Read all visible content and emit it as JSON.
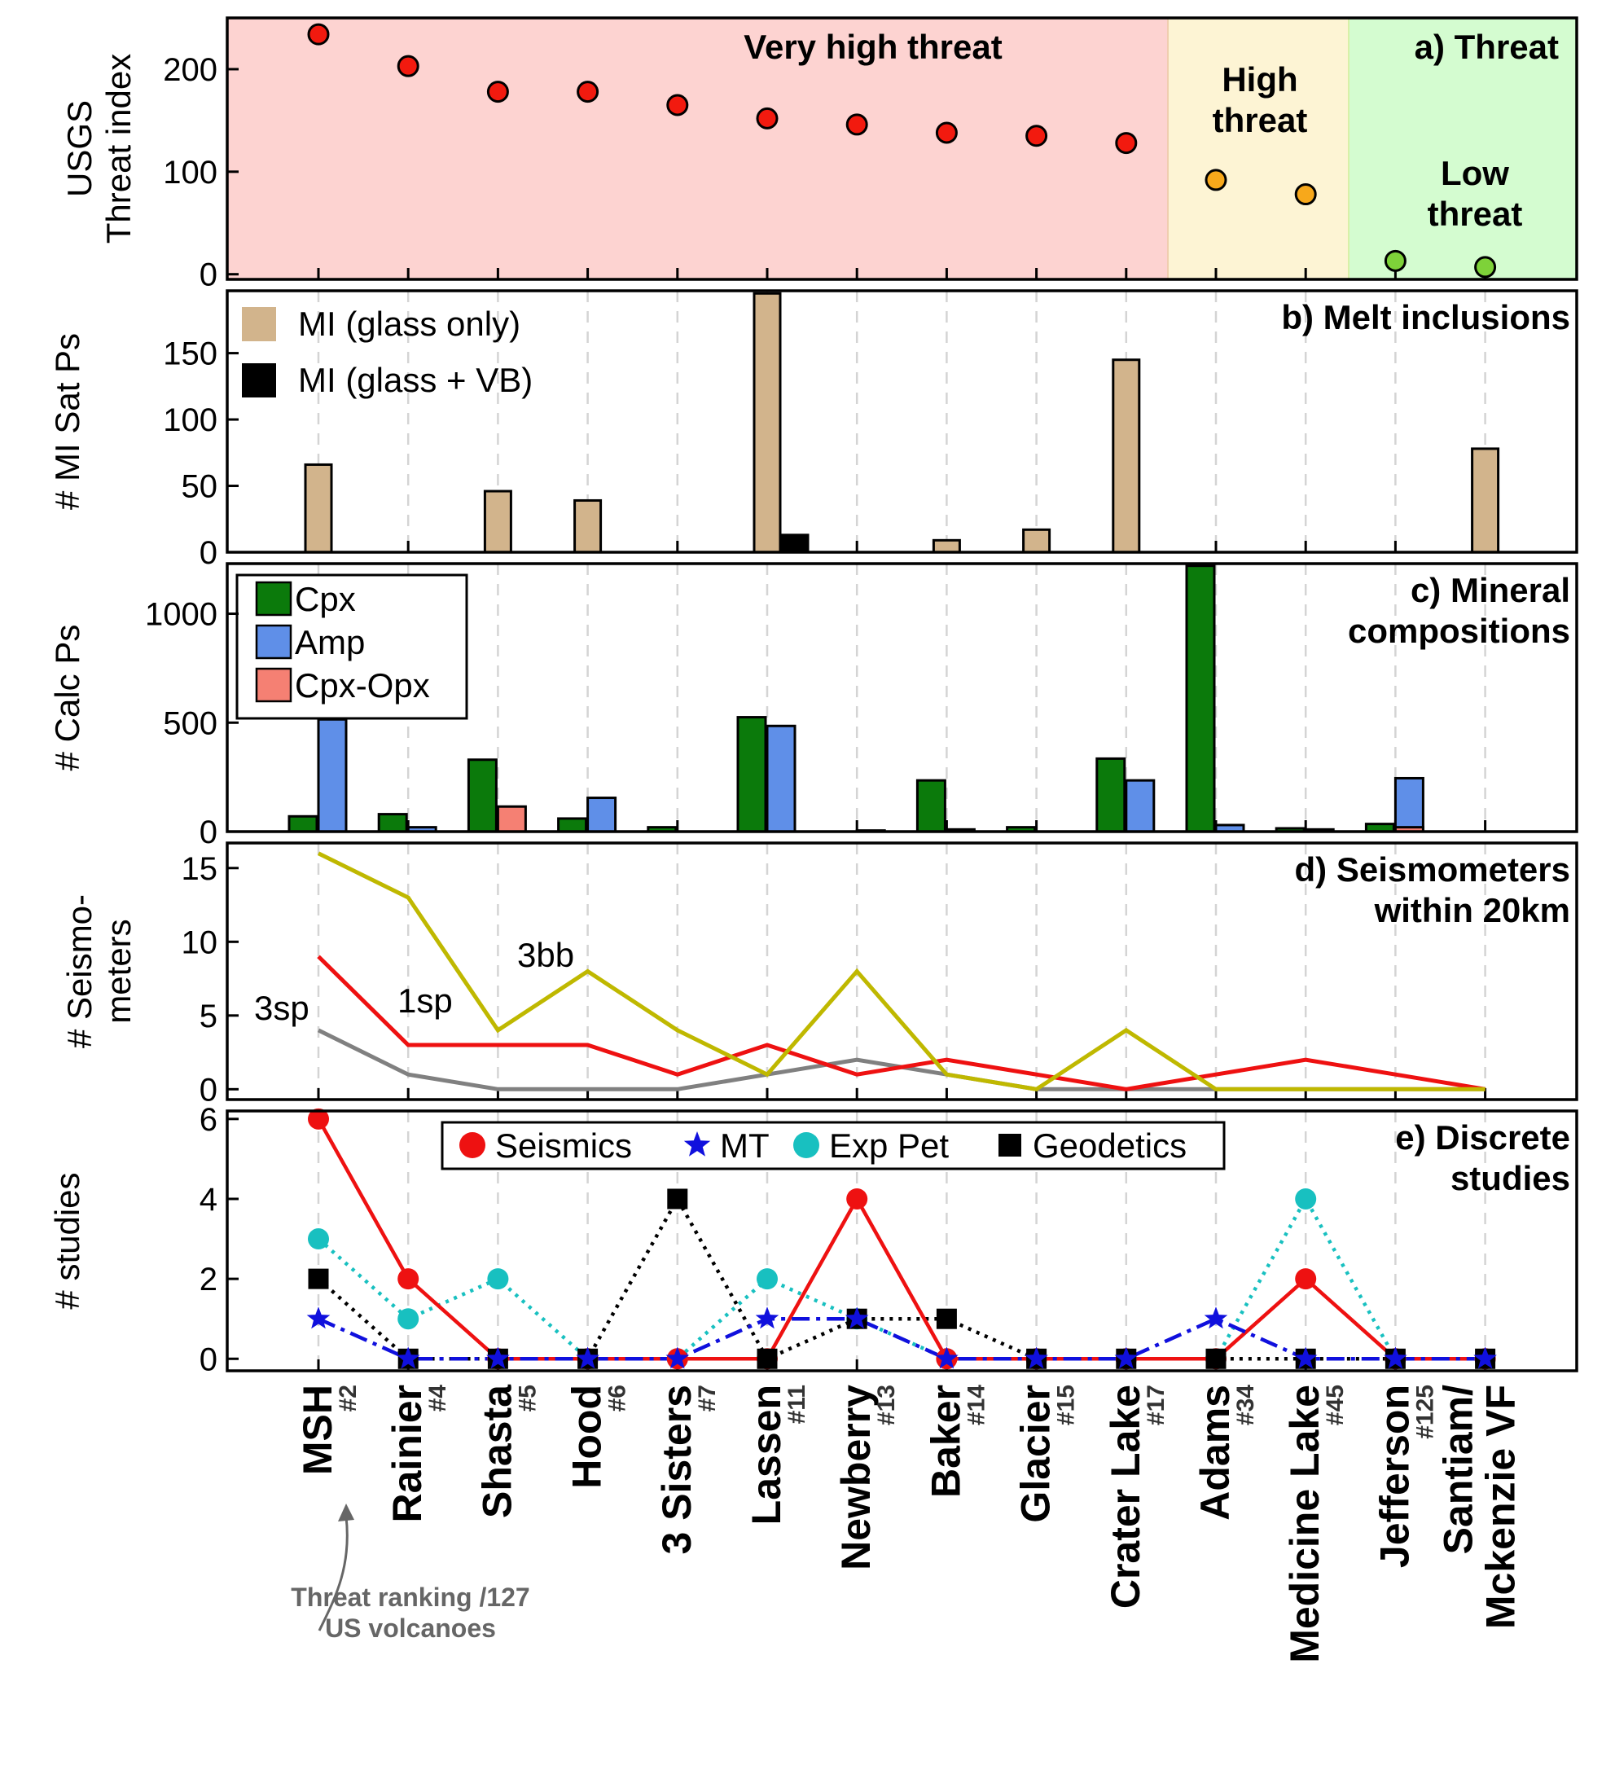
{
  "volcanoes": {
    "names": [
      "MSH",
      "Rainier",
      "Shasta",
      "Hood",
      "3 Sisters",
      "Lassen",
      "Newberry",
      "Baker",
      "Glacier",
      "Crater Lake",
      "Adams",
      "Medicine Lake",
      "Jefferson",
      "Santiam/\nMckenzie VF"
    ],
    "name_lines": [
      [
        "MSH"
      ],
      [
        "Rainier"
      ],
      [
        "Shasta"
      ],
      [
        "Hood"
      ],
      [
        "3 Sisters"
      ],
      [
        "Lassen"
      ],
      [
        "Newberry"
      ],
      [
        "Baker"
      ],
      [
        "Glacier"
      ],
      [
        "Crater Lake"
      ],
      [
        "Adams"
      ],
      [
        "Medicine Lake"
      ],
      [
        "Jefferson"
      ],
      [
        "Santiam/",
        "Mckenzie VF"
      ]
    ],
    "ranks": [
      "#2",
      "#4",
      "#5",
      "#6",
      "#7",
      "#11",
      "#13",
      "#14",
      "#15",
      "#17",
      "#34",
      "#45",
      "#125",
      ""
    ]
  },
  "annotation": {
    "line1": "Threat ranking /127",
    "line2": "US volcanoes",
    "color": "#666666"
  },
  "colors": {
    "very_high_bg": "#fdd3d1",
    "high_bg": "#fdf4d4",
    "low_bg": "#d4fcd0",
    "very_high_pt": "#f21a0f",
    "high_pt": "#f7a81b",
    "low_pt": "#7ed239",
    "mi_glass": "#d2b48c",
    "mi_vb": "#000000",
    "cpx": "#0b7a0b",
    "amp": "#5f8fe8",
    "cpxopx": "#f58073",
    "seis_3bb": "#bfb800",
    "seis_1sp": "#ee1111",
    "seis_3sp": "#808080",
    "seismics": "#ee1111",
    "mt": "#1010dd",
    "exppet": "#18c0c0",
    "geodetics": "#000000"
  },
  "chart_data": [
    {
      "id": "a",
      "type": "scatter",
      "panel_label": "a) Threat",
      "ylabel": [
        "USGS",
        "Threat index"
      ],
      "ylim": [
        -5,
        250
      ],
      "yticks": [
        0,
        100,
        200
      ],
      "zones": [
        {
          "label": [
            "Very high threat"
          ],
          "from_index": 0,
          "to_index": 9
        },
        {
          "label": [
            "High",
            "threat"
          ],
          "from_index": 10,
          "to_index": 11
        },
        {
          "label": [
            "Low",
            "threat"
          ],
          "from_index": 12,
          "to_index": 13
        }
      ],
      "values": [
        234,
        203,
        178,
        178,
        165,
        152,
        146,
        138,
        135,
        128,
        92,
        78,
        13,
        7
      ],
      "zone_of_point": [
        "very_high",
        "very_high",
        "very_high",
        "very_high",
        "very_high",
        "very_high",
        "very_high",
        "very_high",
        "very_high",
        "very_high",
        "high",
        "high",
        "low",
        "low"
      ]
    },
    {
      "id": "b",
      "type": "bar",
      "panel_label": "b) Melt inclusions",
      "ylabel": [
        "# MI Sat Ps"
      ],
      "ylim": [
        0,
        197
      ],
      "yticks": [
        0,
        50,
        100,
        150
      ],
      "series": [
        {
          "name": "MI (glass only)",
          "values": [
            66,
            0,
            46,
            39,
            0,
            195,
            0,
            9,
            17,
            145,
            0,
            0,
            0,
            78
          ]
        },
        {
          "name": "MI (glass + VB)",
          "values": [
            0,
            0,
            0,
            0,
            0,
            13,
            0,
            0,
            0,
            0,
            0,
            0,
            0,
            0
          ]
        }
      ]
    },
    {
      "id": "c",
      "type": "bar",
      "panel_label": "c) Mineral\ncompositions",
      "panel_label_lines": [
        "c) Mineral",
        "compositions"
      ],
      "ylabel": [
        "# Calc Ps"
      ],
      "ylim": [
        0,
        1230
      ],
      "yticks": [
        0,
        500,
        1000
      ],
      "series": [
        {
          "name": "Cpx",
          "values": [
            70,
            80,
            330,
            60,
            20,
            525,
            0,
            235,
            20,
            335,
            1220,
            15,
            35,
            0
          ]
        },
        {
          "name": "Amp",
          "values": [
            515,
            20,
            0,
            155,
            0,
            485,
            5,
            10,
            0,
            235,
            30,
            10,
            245,
            0
          ]
        },
        {
          "name": "Cpx-Opx",
          "values": [
            0,
            0,
            115,
            0,
            0,
            0,
            0,
            0,
            0,
            0,
            0,
            0,
            20,
            0
          ]
        }
      ]
    },
    {
      "id": "d",
      "type": "line",
      "panel_label": "d) Seismometers\nwithin 20km",
      "panel_label_lines": [
        "d) Seismometers",
        "within 20km"
      ],
      "ylabel": [
        "# Seismo-",
        "meters"
      ],
      "ylim": [
        -0.7,
        16.7
      ],
      "yticks": [
        0,
        5,
        10,
        15
      ],
      "series": [
        {
          "name": "3bb",
          "values": [
            16,
            13,
            4,
            8,
            4,
            1,
            8,
            1,
            0,
            4,
            0,
            0,
            0,
            0
          ]
        },
        {
          "name": "1sp",
          "values": [
            9,
            3,
            3,
            3,
            1,
            3,
            1,
            2,
            1,
            0,
            1,
            2,
            1,
            0
          ]
        },
        {
          "name": "3sp",
          "values": [
            4,
            1,
            0,
            0,
            0,
            1,
            2,
            1,
            0,
            0,
            0,
            0,
            0,
            0
          ]
        }
      ]
    },
    {
      "id": "e",
      "type": "line",
      "panel_label": "e) Discrete\nstudies",
      "panel_label_lines": [
        "e) Discrete",
        "studies"
      ],
      "ylabel": [
        "# studies"
      ],
      "ylim": [
        -0.3,
        6.2
      ],
      "yticks": [
        0,
        2,
        4,
        6
      ],
      "series": [
        {
          "name": "Seismics",
          "values": [
            6,
            2,
            0,
            0,
            0,
            0,
            4,
            0,
            0,
            0,
            0,
            2,
            0,
            0
          ]
        },
        {
          "name": "MT",
          "values": [
            1,
            0,
            0,
            0,
            0,
            1,
            1,
            0,
            0,
            0,
            1,
            0,
            0,
            0
          ]
        },
        {
          "name": "Exp Pet",
          "values": [
            3,
            1,
            2,
            0,
            0,
            2,
            1,
            0,
            0,
            0,
            0,
            4,
            0,
            0
          ]
        },
        {
          "name": "Geodetics",
          "values": [
            2,
            0,
            0,
            0,
            4,
            0,
            1,
            1,
            0,
            0,
            0,
            0,
            0,
            0
          ]
        }
      ]
    }
  ]
}
